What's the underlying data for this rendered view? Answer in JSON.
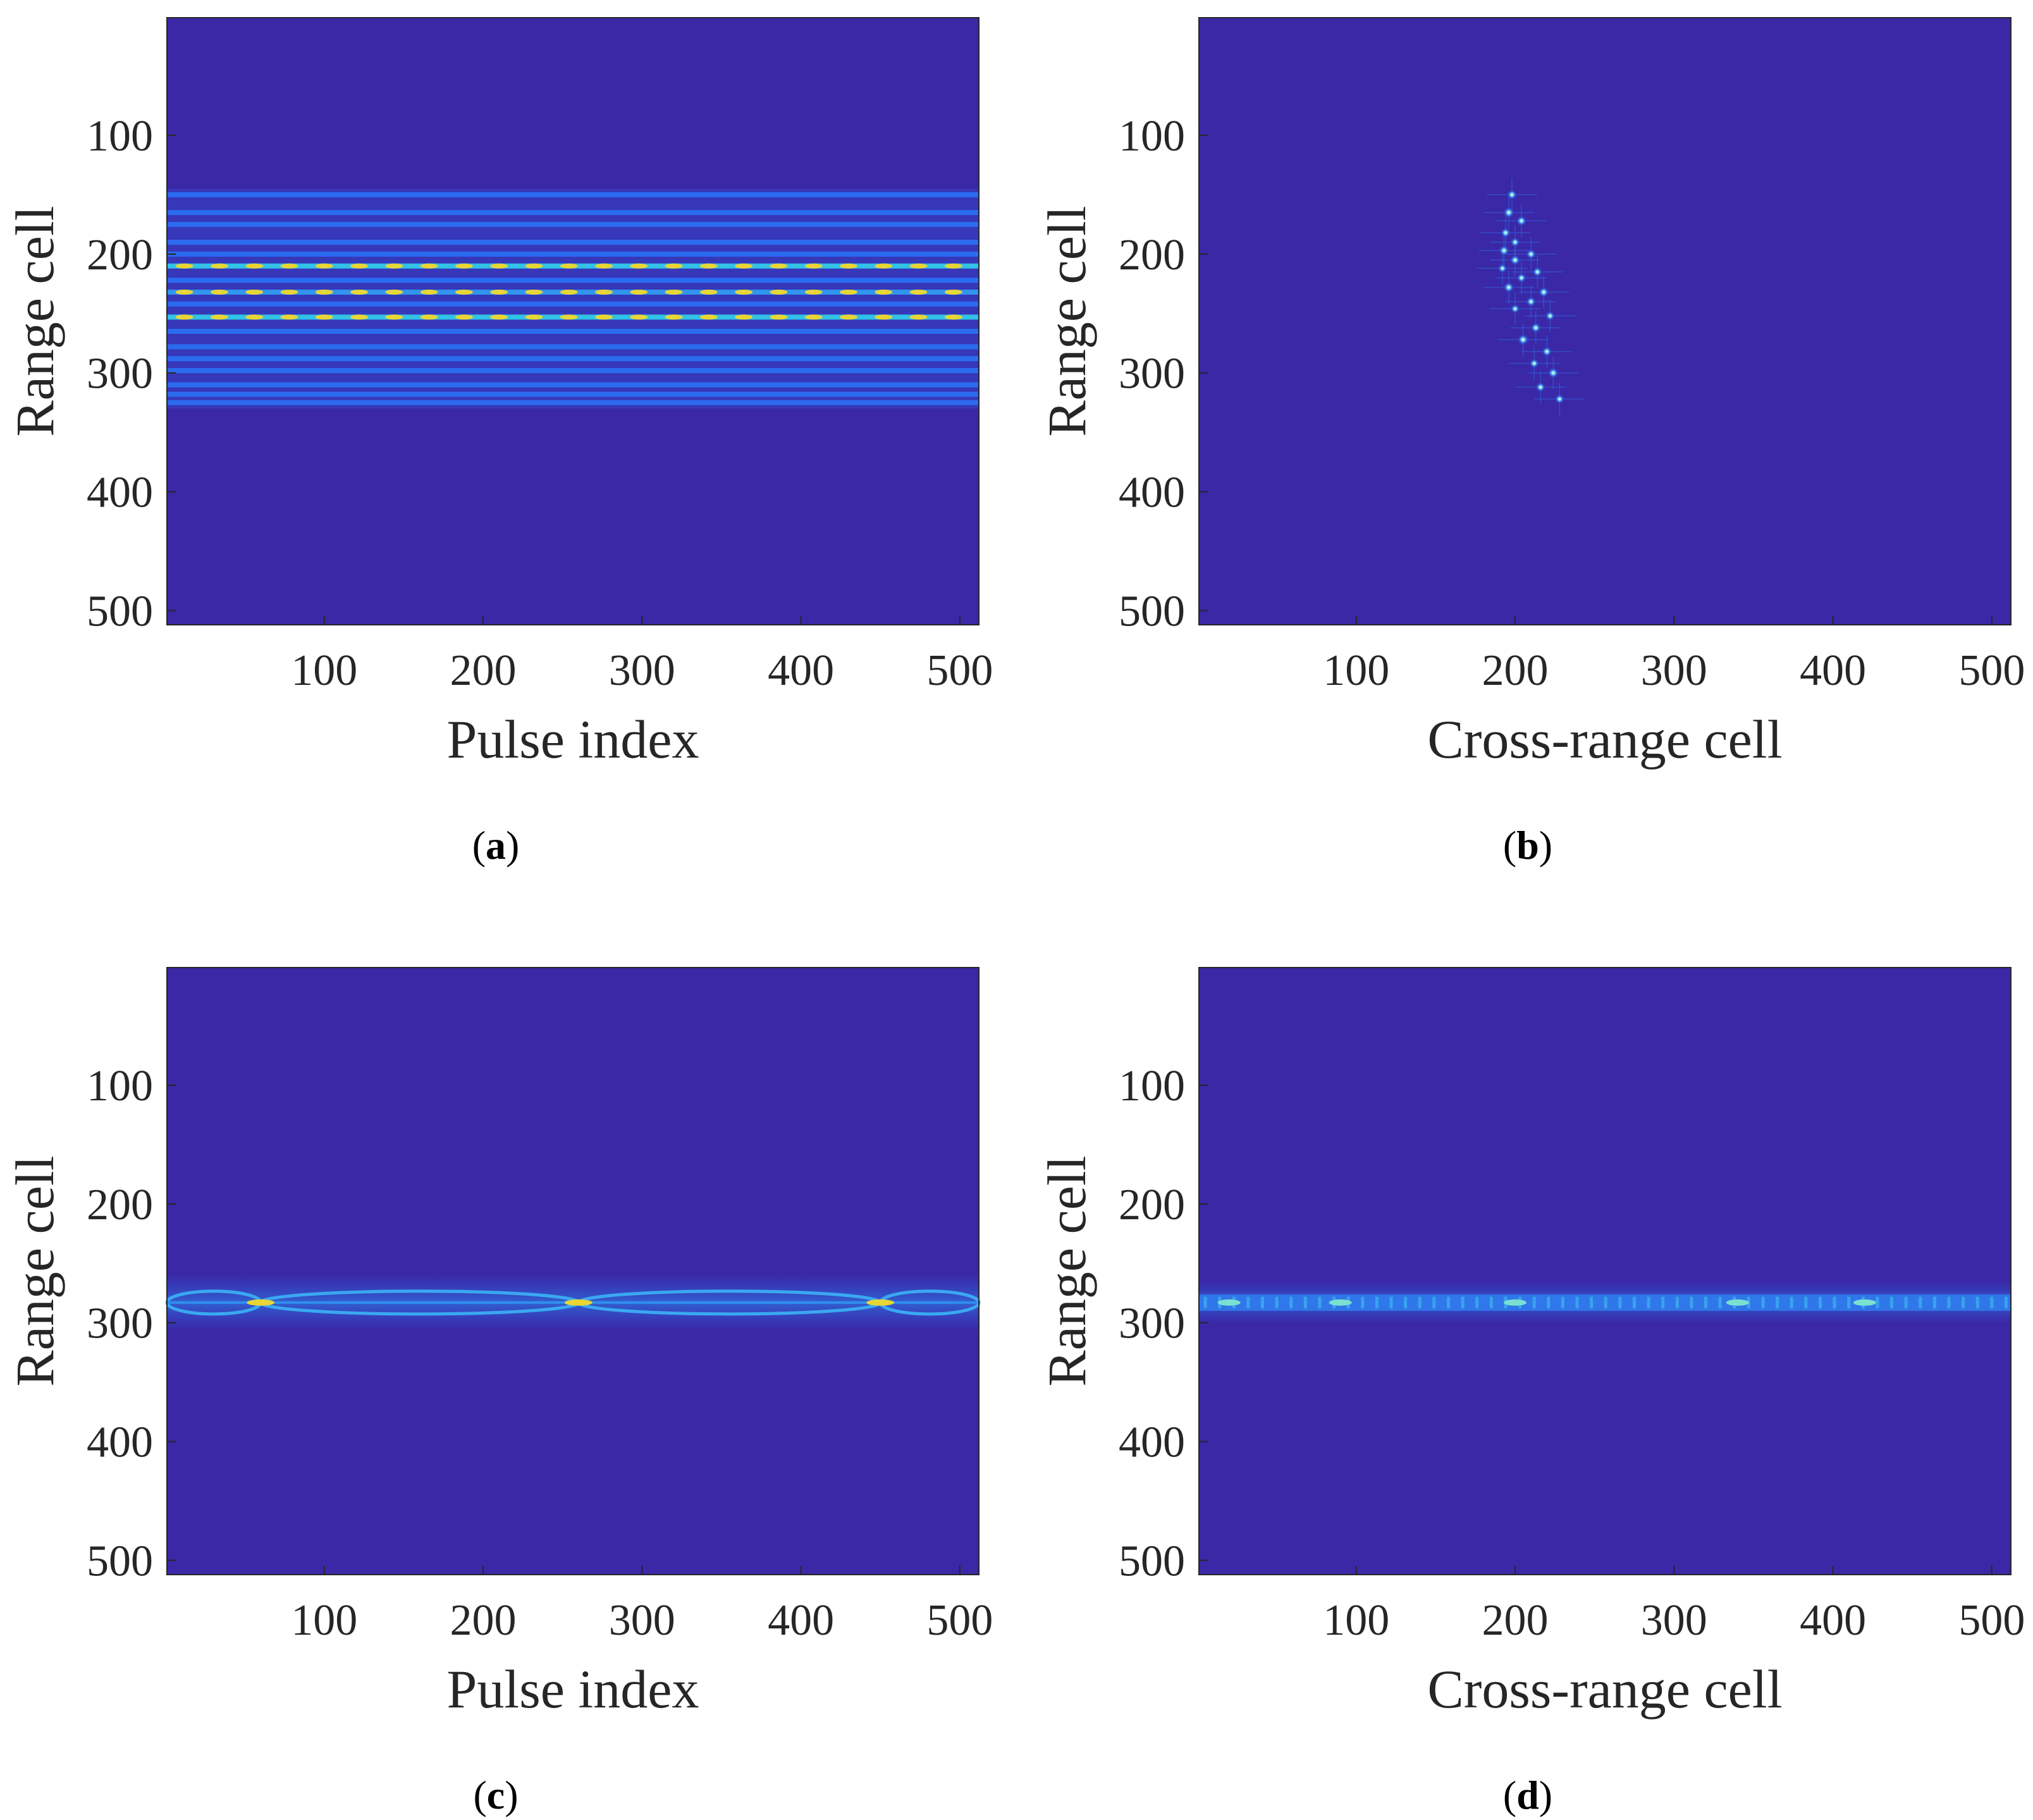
{
  "colors": {
    "background": "#3a28a6",
    "low": "#3f2fb6",
    "mid": "#2a6ef2",
    "cyan": "#30c9e8",
    "high": "#e8d536",
    "peak": "#fff27a",
    "axis": "#262626"
  },
  "chart_data": [
    {
      "id": "a",
      "type": "heatmap",
      "caption_letter": "a",
      "xlabel": "Pulse index",
      "ylabel": "Range cell",
      "xlim": [
        1,
        512
      ],
      "ylim": [
        1,
        512
      ],
      "y_reversed": true,
      "x_ticks": [
        "100",
        "200",
        "300",
        "400",
        "500"
      ],
      "y_ticks": [
        "100",
        "200",
        "300",
        "400",
        "500"
      ],
      "bands": [
        {
          "range_cell": 150,
          "intensity": 0.55
        },
        {
          "range_cell": 165,
          "intensity": 0.5
        },
        {
          "range_cell": 175,
          "intensity": 0.45
        },
        {
          "range_cell": 190,
          "intensity": 0.5
        },
        {
          "range_cell": 200,
          "intensity": 0.55
        },
        {
          "range_cell": 210,
          "intensity": 0.9
        },
        {
          "range_cell": 222,
          "intensity": 0.55
        },
        {
          "range_cell": 232,
          "intensity": 0.85
        },
        {
          "range_cell": 242,
          "intensity": 0.6
        },
        {
          "range_cell": 253,
          "intensity": 0.9
        },
        {
          "range_cell": 265,
          "intensity": 0.5
        },
        {
          "range_cell": 278,
          "intensity": 0.55
        },
        {
          "range_cell": 288,
          "intensity": 0.5
        },
        {
          "range_cell": 298,
          "intensity": 0.55
        },
        {
          "range_cell": 310,
          "intensity": 0.5
        },
        {
          "range_cell": 318,
          "intensity": 0.45
        },
        {
          "range_cell": 325,
          "intensity": 0.5
        }
      ]
    },
    {
      "id": "b",
      "type": "heatmap",
      "caption_letter": "b",
      "xlabel": "Cross-range cell",
      "ylabel": "Range cell",
      "xlim": [
        1,
        512
      ],
      "ylim": [
        1,
        512
      ],
      "y_reversed": true,
      "x_ticks": [
        "100",
        "200",
        "300",
        "400",
        "500"
      ],
      "y_ticks": [
        "100",
        "200",
        "300",
        "400",
        "500"
      ],
      "scatterers": [
        {
          "x": 198,
          "y": 150,
          "intensity": 0.7
        },
        {
          "x": 196,
          "y": 165,
          "intensity": 0.85
        },
        {
          "x": 204,
          "y": 172,
          "intensity": 0.75
        },
        {
          "x": 194,
          "y": 182,
          "intensity": 0.7
        },
        {
          "x": 200,
          "y": 190,
          "intensity": 0.65
        },
        {
          "x": 193,
          "y": 197,
          "intensity": 0.8
        },
        {
          "x": 210,
          "y": 200,
          "intensity": 0.7
        },
        {
          "x": 200,
          "y": 205,
          "intensity": 0.75
        },
        {
          "x": 192,
          "y": 212,
          "intensity": 0.6
        },
        {
          "x": 214,
          "y": 215,
          "intensity": 0.7
        },
        {
          "x": 204,
          "y": 220,
          "intensity": 0.65
        },
        {
          "x": 196,
          "y": 228,
          "intensity": 0.8
        },
        {
          "x": 218,
          "y": 232,
          "intensity": 0.75
        },
        {
          "x": 210,
          "y": 240,
          "intensity": 0.7
        },
        {
          "x": 200,
          "y": 246,
          "intensity": 0.6
        },
        {
          "x": 222,
          "y": 252,
          "intensity": 0.65
        },
        {
          "x": 213,
          "y": 262,
          "intensity": 0.75
        },
        {
          "x": 205,
          "y": 272,
          "intensity": 0.85
        },
        {
          "x": 220,
          "y": 282,
          "intensity": 0.7
        },
        {
          "x": 212,
          "y": 292,
          "intensity": 0.65
        },
        {
          "x": 224,
          "y": 300,
          "intensity": 0.8
        },
        {
          "x": 216,
          "y": 312,
          "intensity": 0.7
        },
        {
          "x": 228,
          "y": 322,
          "intensity": 0.65
        }
      ]
    },
    {
      "id": "c",
      "type": "heatmap",
      "caption_letter": "c",
      "xlabel": "Pulse index",
      "ylabel": "Range cell",
      "xlim": [
        1,
        512
      ],
      "ylim": [
        1,
        512
      ],
      "y_reversed": true,
      "x_ticks": [
        "100",
        "200",
        "300",
        "400",
        "500"
      ],
      "y_ticks": [
        "100",
        "200",
        "300",
        "400",
        "500"
      ],
      "band_center": 283,
      "band_half_width": 8,
      "nodes_pulse": [
        60,
        260,
        450
      ]
    },
    {
      "id": "d",
      "type": "heatmap",
      "caption_letter": "d",
      "xlabel": "Cross-range cell",
      "ylabel": "Range cell",
      "xlim": [
        1,
        512
      ],
      "ylim": [
        1,
        512
      ],
      "y_reversed": true,
      "x_ticks": [
        "100",
        "200",
        "300",
        "400",
        "500"
      ],
      "y_ticks": [
        "100",
        "200",
        "300",
        "400",
        "500"
      ],
      "band_center": 283,
      "band_half_width": 7,
      "hotspots_cross_range": [
        20,
        90,
        200,
        340,
        420
      ]
    }
  ]
}
